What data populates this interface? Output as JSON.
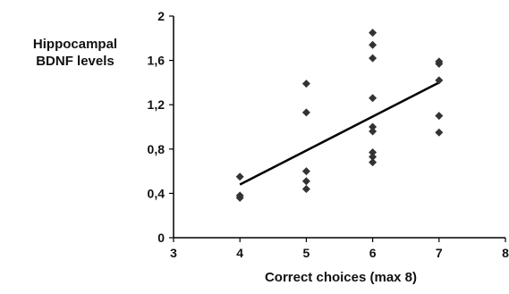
{
  "chart_data": {
    "type": "scatter",
    "title": "",
    "xlabel": "Correct choices (max 8)",
    "ylabel": [
      "Hippocampal",
      "BDNF levels"
    ],
    "xlim": [
      3,
      8
    ],
    "ylim": [
      0,
      2
    ],
    "x_ticks": [
      3,
      4,
      5,
      6,
      7,
      8
    ],
    "y_ticks": [
      0,
      0.4,
      0.8,
      1.2,
      1.6,
      2
    ],
    "y_tick_labels": [
      "0",
      "0,4",
      "0,8",
      "1,2",
      "1,6",
      "2"
    ],
    "grid": false,
    "legend": "none",
    "marker": "diamond",
    "colors": {
      "marker": "#333333",
      "line": "#000000",
      "axis": "#000000"
    },
    "series": [
      {
        "points": [
          {
            "x": 4,
            "y": 0.55
          },
          {
            "x": 4,
            "y": 0.38
          },
          {
            "x": 4,
            "y": 0.36
          },
          {
            "x": 5,
            "y": 1.39
          },
          {
            "x": 5,
            "y": 1.13
          },
          {
            "x": 5,
            "y": 0.6
          },
          {
            "x": 5,
            "y": 0.51
          },
          {
            "x": 5,
            "y": 0.44
          },
          {
            "x": 6,
            "y": 1.85
          },
          {
            "x": 6,
            "y": 1.74
          },
          {
            "x": 6,
            "y": 1.62
          },
          {
            "x": 6,
            "y": 1.26
          },
          {
            "x": 6,
            "y": 1.0
          },
          {
            "x": 6,
            "y": 0.96
          },
          {
            "x": 6,
            "y": 0.77
          },
          {
            "x": 6,
            "y": 0.73
          },
          {
            "x": 6,
            "y": 0.68
          },
          {
            "x": 7,
            "y": 1.59
          },
          {
            "x": 7,
            "y": 1.57
          },
          {
            "x": 7,
            "y": 1.42
          },
          {
            "x": 7,
            "y": 1.1
          },
          {
            "x": 7,
            "y": 0.95
          }
        ]
      }
    ],
    "trendline": {
      "x": [
        4,
        7
      ],
      "y": [
        0.48,
        1.4
      ]
    }
  }
}
